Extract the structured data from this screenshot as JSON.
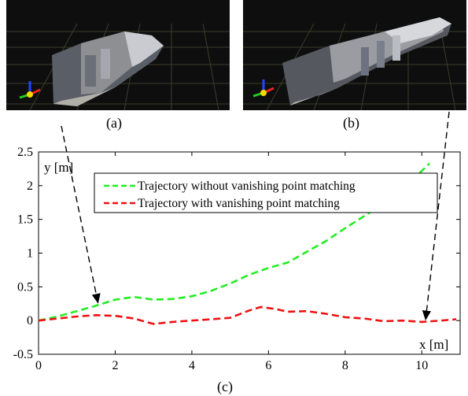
{
  "panels": [
    {
      "caption": "(a)"
    },
    {
      "caption": "(b)"
    }
  ],
  "chart_caption": "(c)",
  "colors": {
    "without": "#22ee22",
    "with": "#ee1111",
    "grid_bg": "#0e0e0e",
    "grid_line": "#3a3f2a"
  },
  "icons": [
    "axis-triad-icon"
  ],
  "chart_data": {
    "type": "line",
    "title": "",
    "xlabel": "x [m]",
    "ylabel": "y [m]",
    "xlim": [
      0,
      11
    ],
    "ylim": [
      -0.5,
      2.5
    ],
    "xticks": [
      "0",
      "2",
      "4",
      "6",
      "8",
      "10"
    ],
    "yticks": [
      "-0.5",
      "0",
      "0.5",
      "1",
      "1.5",
      "2",
      "2.5"
    ],
    "legend_position": "top-right",
    "series": [
      {
        "name": "Trajectory without vanishing point matching",
        "style": "dashed",
        "x": [
          0,
          0.5,
          1.0,
          1.5,
          2.0,
          2.5,
          3.0,
          3.5,
          4.0,
          4.5,
          5.0,
          5.5,
          6.0,
          6.5,
          7.0,
          7.5,
          8.0,
          8.5,
          9.0,
          9.5,
          10.0,
          10.2
        ],
        "y": [
          0.0,
          0.06,
          0.14,
          0.22,
          0.31,
          0.35,
          0.31,
          0.32,
          0.36,
          0.44,
          0.55,
          0.68,
          0.78,
          0.86,
          1.02,
          1.18,
          1.37,
          1.55,
          1.73,
          1.97,
          2.22,
          2.33
        ]
      },
      {
        "name": "Trajectory with vanishing point matching",
        "style": "dashed",
        "x": [
          0,
          0.5,
          1.0,
          1.5,
          2.0,
          2.5,
          2.8,
          3.0,
          3.5,
          4.0,
          4.5,
          5.0,
          5.5,
          5.8,
          6.2,
          6.5,
          7.0,
          7.5,
          8.0,
          8.5,
          9.0,
          9.5,
          10.0,
          10.5,
          10.9
        ],
        "y": [
          0.0,
          0.03,
          0.06,
          0.08,
          0.07,
          0.03,
          -0.02,
          -0.05,
          -0.02,
          0.0,
          0.02,
          0.04,
          0.15,
          0.2,
          0.17,
          0.13,
          0.14,
          0.1,
          0.05,
          0.03,
          -0.01,
          0.0,
          -0.02,
          0.0,
          0.02
        ]
      }
    ],
    "annotations": [
      {
        "from_panel": "(a)",
        "to_x": 1.55,
        "to_y": 0.22
      },
      {
        "from_panel": "(b)",
        "to_x": 10.1,
        "to_y": -0.03
      }
    ]
  }
}
